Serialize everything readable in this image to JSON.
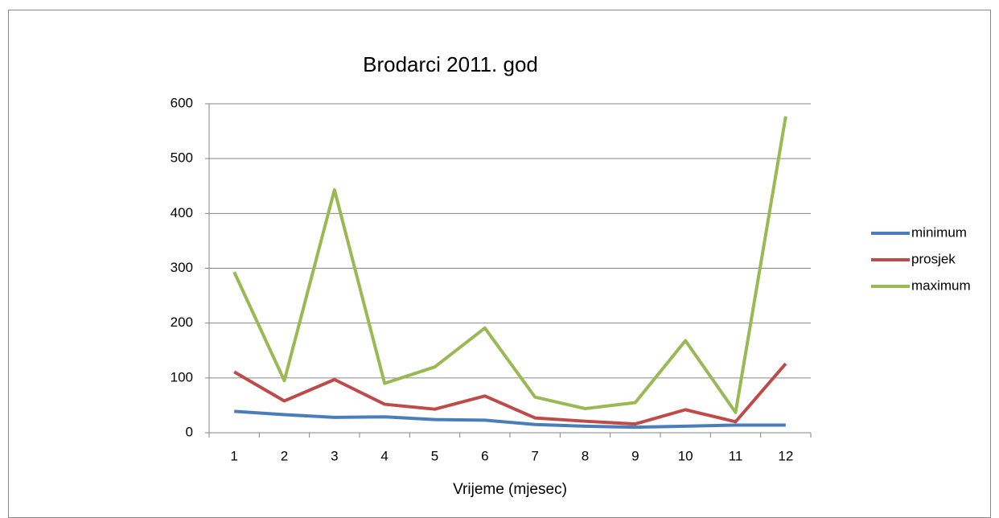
{
  "chart_data": {
    "type": "line",
    "title": "Brodarci 2011. god",
    "x_label": "Vrijeme (mjesec)",
    "categories": [
      "1",
      "2",
      "3",
      "4",
      "5",
      "6",
      "7",
      "8",
      "9",
      "10",
      "11",
      "12"
    ],
    "series": [
      {
        "name": "minimum",
        "color": "#4a7ebb",
        "values": [
          39,
          33,
          28,
          29,
          24,
          23,
          15,
          12,
          10,
          12,
          14,
          14
        ]
      },
      {
        "name": "prosjek",
        "color": "#be4b48",
        "values": [
          111,
          58,
          97,
          52,
          43,
          67,
          27,
          21,
          16,
          42,
          20,
          126
        ]
      },
      {
        "name": "maximum",
        "color": "#98b954",
        "values": [
          293,
          95,
          443,
          90,
          120,
          191,
          65,
          44,
          55,
          168,
          37,
          577
        ]
      }
    ],
    "ylim": [
      0,
      600
    ],
    "yticks": [
      0,
      100,
      200,
      300,
      400,
      500,
      600
    ],
    "grid": true,
    "legend": "right"
  }
}
